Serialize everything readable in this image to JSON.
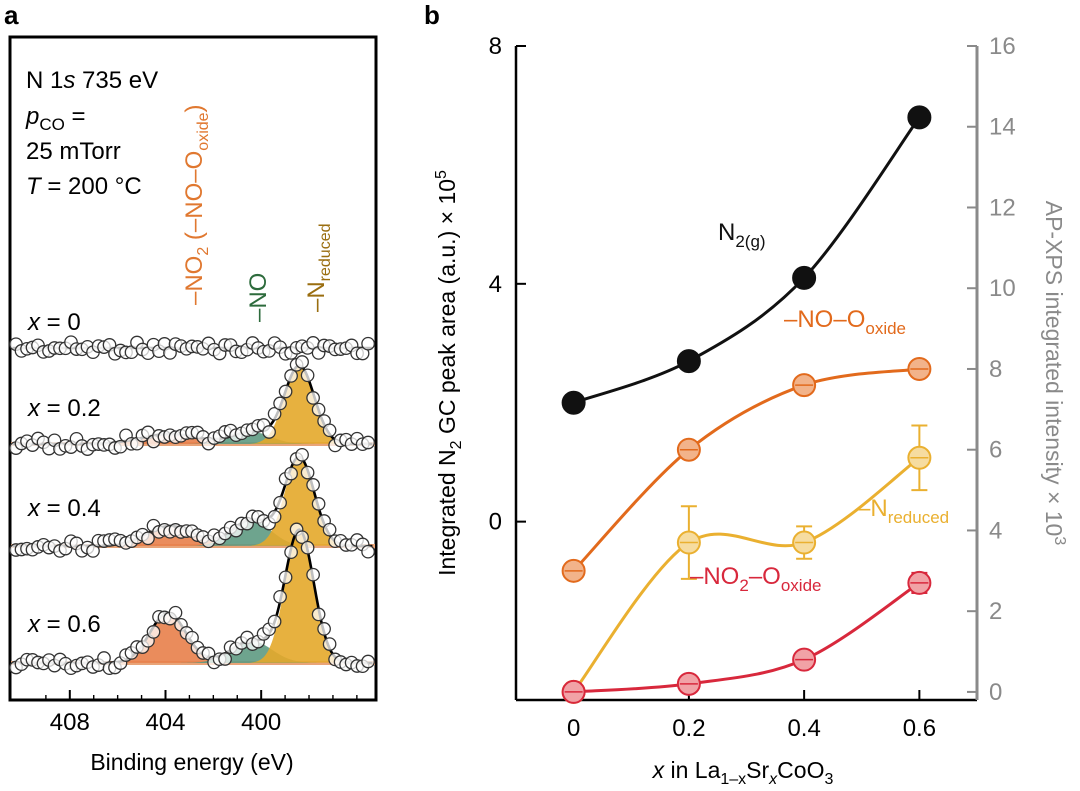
{
  "panel_labels": [
    "a",
    "b"
  ],
  "colors": {
    "no2": "#e07830",
    "no": "#2d6b3c",
    "nred": "#9a6e10",
    "nred_fill": "#e4a82a",
    "no_fill": "#5e9a82",
    "no2_fill": "#e8804a",
    "n2": "#111111",
    "no_oxide": "#e26a1c",
    "n_reduced": "#eab030",
    "no2_oxide": "#d8283c",
    "right_axis": "#8a8a8a"
  },
  "chart_data": [
    {
      "type": "line",
      "panel": "a",
      "conditions": {
        "line1_main": "N 1",
        "line1_italic": "s",
        "line1_rest": " 735 eV",
        "line2_p": "p",
        "line2_sub": "CO",
        "line2_rest": " =",
        "line3": "25 mTorr",
        "line4_T": "T",
        "line4_rest": " = 200 °C"
      },
      "xlabel": "Binding energy (eV)",
      "xlim": [
        410.5,
        395.2
      ],
      "xticks": [
        408,
        404,
        400
      ],
      "peak_labels": [
        {
          "name": "no2",
          "pre": "–NO",
          "sub": "2",
          "mid": " (–NO–O",
          "sub2": "oxide",
          "post": ")",
          "be": 404.0
        },
        {
          "name": "no",
          "text": "–NO",
          "be": 400.6
        },
        {
          "name": "nred",
          "pre": "–N",
          "sub": "reduced",
          "be": 398.3
        }
      ],
      "series": [
        {
          "label_var": "x",
          "label_val": " = 0",
          "x_value": 0,
          "peaks": []
        },
        {
          "label_var": "x",
          "label_val": " = 0.2",
          "x_value": 0.2,
          "peaks": [
            {
              "type": "no2",
              "center": 403.8,
              "height": 0.1,
              "width": 1.2
            },
            {
              "type": "no",
              "center": 400.4,
              "height": 0.12,
              "width": 0.8
            },
            {
              "type": "nred",
              "center": 398.4,
              "height": 0.78,
              "width": 0.62
            }
          ]
        },
        {
          "label_var": "x",
          "label_val": " = 0.4",
          "x_value": 0.4,
          "peaks": [
            {
              "type": "no2",
              "center": 403.8,
              "height": 0.2,
              "width": 1.0
            },
            {
              "type": "no",
              "center": 400.4,
              "height": 0.26,
              "width": 0.8
            },
            {
              "type": "nred",
              "center": 398.4,
              "height": 0.88,
              "width": 0.62
            }
          ]
        },
        {
          "label_var": "x",
          "label_val": " = 0.6",
          "x_value": 0.6,
          "peaks": [
            {
              "type": "no2",
              "center": 403.9,
              "height": 0.5,
              "width": 0.75
            },
            {
              "type": "no",
              "center": 400.4,
              "height": 0.22,
              "width": 0.85
            },
            {
              "type": "nred",
              "center": 398.4,
              "height": 1.32,
              "width": 0.6
            }
          ]
        }
      ]
    },
    {
      "type": "scatter",
      "panel": "b",
      "xlabel": {
        "pre": "x",
        "mid": " in La",
        "s1": "1–x",
        "m2": "Sr",
        "s2": "x",
        "m3": "CoO",
        "s3": "3"
      },
      "ylabel": {
        "pre": "Integrated N",
        "sub": "2",
        "mid": " GC peak area (a.u.) × 10",
        "sup": "5"
      },
      "ylabel_right": {
        "pre": "AP-XPS integrated intensity × 10",
        "sup": "3"
      },
      "xlim": [
        -0.1,
        0.7
      ],
      "ylim": [
        -3,
        8
      ],
      "ylim_right": [
        -0.2,
        16
      ],
      "xticks": [
        "0",
        "0.2",
        "0.4",
        "0.6"
      ],
      "xtick_values": [
        0,
        0.2,
        0.4,
        0.6
      ],
      "yticks": [
        0,
        4,
        8
      ],
      "yticks_right": [
        0,
        2,
        4,
        6,
        8,
        10,
        12,
        14,
        16
      ],
      "series": [
        {
          "name": "n2",
          "axis": "left",
          "label_pre": "N",
          "label_sub": "2(g)",
          "x": [
            0,
            0.2,
            0.4,
            0.6
          ],
          "y": [
            2.0,
            2.7,
            4.1,
            6.8
          ],
          "err": [
            0,
            0,
            0,
            0
          ]
        },
        {
          "name": "no_oxide",
          "axis": "right",
          "label_pre": "–NO–O",
          "label_sub": "oxide",
          "x": [
            0,
            0.2,
            0.4,
            0.6
          ],
          "y": [
            3.0,
            6.0,
            7.6,
            8.0
          ],
          "err": [
            0.1,
            0.15,
            0.15,
            0.15
          ]
        },
        {
          "name": "n_reduced",
          "axis": "right",
          "label_pre": "–N",
          "label_sub": "reduced",
          "x": [
            0,
            0.2,
            0.4,
            0.6
          ],
          "y": [
            0.0,
            3.7,
            3.7,
            5.8
          ],
          "err": [
            0.1,
            0.9,
            0.4,
            0.8
          ]
        },
        {
          "name": "no2_oxide",
          "axis": "right",
          "label_pre": "–NO",
          "label_sub": "2",
          "label_mid": "–O",
          "label_sub2": "oxide",
          "x": [
            0,
            0.2,
            0.4,
            0.6
          ],
          "y": [
            0.0,
            0.2,
            0.8,
            2.7
          ],
          "err": [
            0.1,
            0.1,
            0.1,
            0.25
          ]
        }
      ]
    }
  ]
}
